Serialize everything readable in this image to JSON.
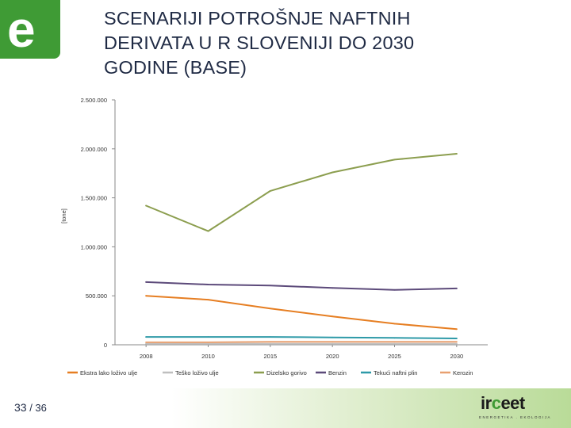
{
  "logo": {
    "letter": "e"
  },
  "title_lines": [
    "SCENARIJI POTROŠNJE NAFTNIH",
    "DERIVATA U R SLOVENIJI DO 2030",
    "GODINE (BASE)"
  ],
  "page": {
    "current": "33",
    "separator": " / ",
    "total": "36"
  },
  "brand": {
    "prefix": "ir",
    "mid": "c",
    "suffix": "eet",
    "tagline": "ENERGETIKA . EKOLOGIJA"
  },
  "chart_data": {
    "type": "line",
    "title": "",
    "xlabel": "",
    "ylabel": "[tone]",
    "x": [
      "2008",
      "2010",
      "2015",
      "2020",
      "2025",
      "2030"
    ],
    "ylim": [
      0,
      2500000
    ],
    "yticks": [
      0,
      500000,
      1000000,
      1500000,
      2000000,
      2500000
    ],
    "ytick_labels": [
      "0",
      "500.000",
      "1.000.000",
      "1.500.000",
      "2.000.000",
      "2.500.000"
    ],
    "grid": false,
    "legend_position": "bottom",
    "series": [
      {
        "name": "Ekstra lako loživo ulje",
        "color": "#e67e22",
        "values": [
          500000,
          460000,
          370000,
          290000,
          215000,
          160000
        ]
      },
      {
        "name": "Teško loživo ulje",
        "color": "#bfbfbf",
        "values": [
          10000,
          10000,
          10000,
          10000,
          10000,
          10000
        ]
      },
      {
        "name": "Dizelsko gorivo",
        "color": "#8c9e4f",
        "values": [
          1420000,
          1160000,
          1570000,
          1760000,
          1890000,
          1950000
        ]
      },
      {
        "name": "Benzin",
        "color": "#5c4a7a",
        "values": [
          640000,
          615000,
          605000,
          580000,
          560000,
          575000
        ]
      },
      {
        "name": "Tekući naftni plin",
        "color": "#2e9aa8",
        "values": [
          80000,
          80000,
          80000,
          75000,
          70000,
          65000
        ]
      },
      {
        "name": "Kerozin",
        "color": "#e8a070",
        "values": [
          25000,
          25000,
          30000,
          30000,
          30000,
          30000
        ]
      }
    ]
  }
}
